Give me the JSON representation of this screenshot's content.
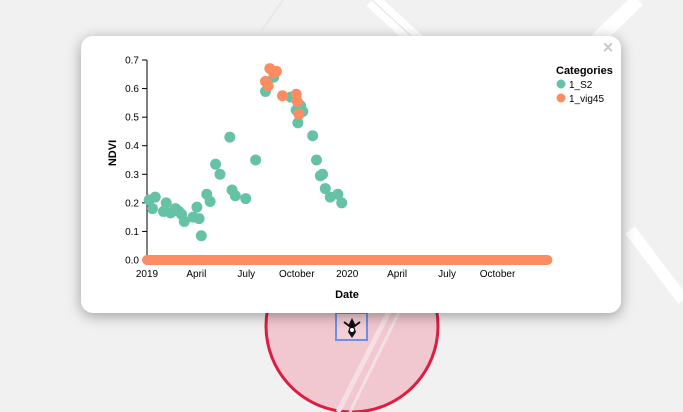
{
  "popup": {
    "close_label": "×"
  },
  "chart_data": {
    "type": "scatter",
    "xlabel": "Date",
    "ylabel": "NDVI",
    "x_scale": "time",
    "xlim": [
      "2019-01-01",
      "2021-01-01"
    ],
    "ylim": [
      0.0,
      0.7
    ],
    "y_ticks": [
      0.0,
      0.1,
      0.2,
      0.3,
      0.4,
      0.5,
      0.6,
      0.7
    ],
    "y_tick_labels": [
      "0.0",
      "0.1",
      "0.2",
      "0.3",
      "0.4",
      "0.5",
      "0.6",
      "0.7"
    ],
    "x_ticks": [
      {
        "date": "2019-01-01",
        "label": "2019"
      },
      {
        "date": "2019-04-01",
        "label": "April"
      },
      {
        "date": "2019-07-01",
        "label": "July"
      },
      {
        "date": "2019-10-01",
        "label": "October"
      },
      {
        "date": "2020-01-01",
        "label": "2020"
      },
      {
        "date": "2020-04-01",
        "label": "April"
      },
      {
        "date": "2020-07-01",
        "label": "July"
      },
      {
        "date": "2020-10-01",
        "label": "October"
      }
    ],
    "legend": {
      "title": "Categories",
      "position": "top-right"
    },
    "series": [
      {
        "name": "1_S2",
        "color": "#66c2a5",
        "points": [
          {
            "x": "2019-01-05",
            "y": 0.21
          },
          {
            "x": "2019-01-11",
            "y": 0.18
          },
          {
            "x": "2019-01-16",
            "y": 0.22
          },
          {
            "x": "2019-01-31",
            "y": 0.17
          },
          {
            "x": "2019-02-05",
            "y": 0.2
          },
          {
            "x": "2019-02-13",
            "y": 0.165
          },
          {
            "x": "2019-02-22",
            "y": 0.18
          },
          {
            "x": "2019-02-28",
            "y": 0.17
          },
          {
            "x": "2019-03-05",
            "y": 0.16
          },
          {
            "x": "2019-03-10",
            "y": 0.135
          },
          {
            "x": "2019-03-26",
            "y": 0.15
          },
          {
            "x": "2019-04-02",
            "y": 0.185
          },
          {
            "x": "2019-04-06",
            "y": 0.145
          },
          {
            "x": "2019-04-10",
            "y": 0.085
          },
          {
            "x": "2019-04-20",
            "y": 0.23
          },
          {
            "x": "2019-04-26",
            "y": 0.205
          },
          {
            "x": "2019-05-06",
            "y": 0.335
          },
          {
            "x": "2019-05-14",
            "y": 0.3
          },
          {
            "x": "2019-06-01",
            "y": 0.43
          },
          {
            "x": "2019-06-05",
            "y": 0.245
          },
          {
            "x": "2019-06-11",
            "y": 0.225
          },
          {
            "x": "2019-06-30",
            "y": 0.215
          },
          {
            "x": "2019-07-18",
            "y": 0.35
          },
          {
            "x": "2019-08-05",
            "y": 0.59
          },
          {
            "x": "2019-08-20",
            "y": 0.64
          },
          {
            "x": "2019-09-20",
            "y": 0.57
          },
          {
            "x": "2019-09-30",
            "y": 0.525
          },
          {
            "x": "2019-10-03",
            "y": 0.48
          },
          {
            "x": "2019-10-08",
            "y": 0.54
          },
          {
            "x": "2019-10-12",
            "y": 0.52
          },
          {
            "x": "2019-10-30",
            "y": 0.435
          },
          {
            "x": "2019-11-06",
            "y": 0.35
          },
          {
            "x": "2019-11-13",
            "y": 0.295
          },
          {
            "x": "2019-11-17",
            "y": 0.3
          },
          {
            "x": "2019-11-22",
            "y": 0.25
          },
          {
            "x": "2019-12-01",
            "y": 0.22
          },
          {
            "x": "2019-12-15",
            "y": 0.23
          },
          {
            "x": "2019-12-22",
            "y": 0.2
          }
        ]
      },
      {
        "name": "1_vig45",
        "color": "#fc8d62",
        "points": [
          {
            "x": "2019-08-05",
            "y": 0.625
          },
          {
            "x": "2019-08-10",
            "y": 0.61
          },
          {
            "x": "2019-08-13",
            "y": 0.67
          },
          {
            "x": "2019-08-20",
            "y": 0.655
          },
          {
            "x": "2019-08-25",
            "y": 0.66
          },
          {
            "x": "2019-09-05",
            "y": 0.575
          },
          {
            "x": "2019-09-30",
            "y": 0.58
          },
          {
            "x": "2019-10-02",
            "y": 0.555
          },
          {
            "x": "2019-10-05",
            "y": 0.51
          }
        ],
        "baseline_y": 0.0,
        "baseline_x_range": [
          "2019-01-01",
          "2020-12-31"
        ]
      }
    ]
  }
}
